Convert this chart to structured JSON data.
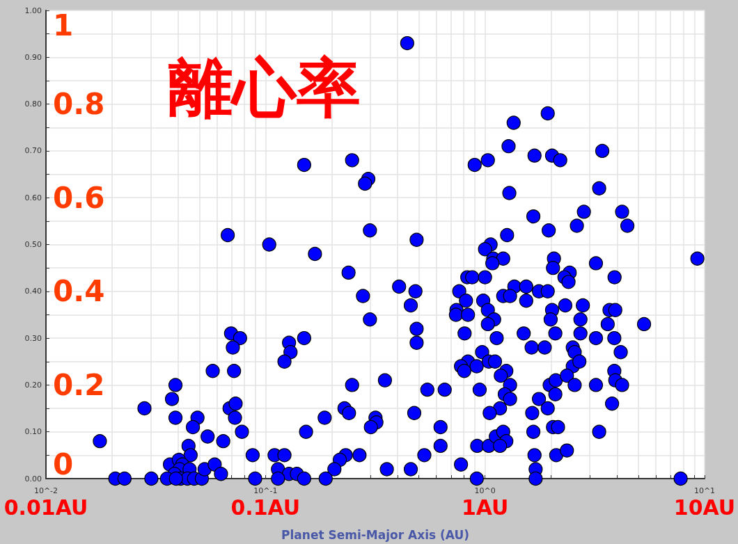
{
  "chart_data": {
    "type": "scatter",
    "annotations": [
      "離心率",
      "0.01AU",
      "0.1AU",
      "1AU",
      "10AU"
    ],
    "xlabel": "Planet Semi-Major Axis (AU)",
    "log": "x",
    "grid": true,
    "marker": "circle",
    "color": "#0000ff",
    "xlim": [
      0.01,
      10
    ],
    "xticks": [
      {
        "value": 0.01,
        "label": "10^-2"
      },
      {
        "value": 0.02,
        "label": null
      },
      {
        "value": 0.03,
        "label": null
      },
      {
        "value": 0.04,
        "label": null
      },
      {
        "value": 0.05,
        "label": null
      },
      {
        "value": 0.06,
        "label": null
      },
      {
        "value": 0.07,
        "label": null
      },
      {
        "value": 0.08,
        "label": null
      },
      {
        "value": 0.09,
        "label": null
      },
      {
        "value": 0.1,
        "label": "10^-1"
      },
      {
        "value": 0.2,
        "label": null
      },
      {
        "value": 0.3,
        "label": null
      },
      {
        "value": 0.4,
        "label": null
      },
      {
        "value": 0.5,
        "label": null
      },
      {
        "value": 0.6,
        "label": null
      },
      {
        "value": 0.7,
        "label": null
      },
      {
        "value": 0.8,
        "label": null
      },
      {
        "value": 0.9,
        "label": null
      },
      {
        "value": 1,
        "label": "10^0"
      },
      {
        "value": 2,
        "label": null
      },
      {
        "value": 3,
        "label": null
      },
      {
        "value": 4,
        "label": null
      },
      {
        "value": 5,
        "label": null
      },
      {
        "value": 6,
        "label": null
      },
      {
        "value": 7,
        "label": null
      },
      {
        "value": 8,
        "label": null
      },
      {
        "value": 9,
        "label": null
      },
      {
        "value": 10,
        "label": "10^1"
      }
    ],
    "ylim": [
      0,
      1
    ],
    "yticks": [
      {
        "value": 0,
        "label": "0.00"
      },
      {
        "value": 0.05,
        "label": null
      },
      {
        "value": 0.1,
        "label": "0.10"
      },
      {
        "value": 0.15,
        "label": null
      },
      {
        "value": 0.2,
        "label": "0.20"
      },
      {
        "value": 0.25,
        "label": null
      },
      {
        "value": 0.3,
        "label": "0.30"
      },
      {
        "value": 0.35,
        "label": null
      },
      {
        "value": 0.4,
        "label": "0.40"
      },
      {
        "value": 0.45,
        "label": null
      },
      {
        "value": 0.5,
        "label": "0.50"
      },
      {
        "value": 0.55,
        "label": null
      },
      {
        "value": 0.6,
        "label": "0.60"
      },
      {
        "value": 0.65,
        "label": null
      },
      {
        "value": 0.7,
        "label": "0.70"
      },
      {
        "value": 0.75,
        "label": null
      },
      {
        "value": 0.8,
        "label": "0.80"
      },
      {
        "value": 0.85,
        "label": null
      },
      {
        "value": 0.9,
        "label": "0.90"
      },
      {
        "value": 0.95,
        "label": null
      },
      {
        "value": 1,
        "label": "1.00"
      }
    ],
    "y2lim": [
      0,
      1
    ],
    "y2ticks": [
      0,
      0.2,
      0.4,
      0.6,
      0.8,
      1
    ],
    "x": [
      0.0176,
      0.0207,
      0.0228,
      0.0281,
      0.0302,
      0.0375,
      0.0389,
      0.0389,
      0.049,
      0.0467,
      0.0545,
      0.0642,
      0.0446,
      0.0456,
      0.0367,
      0.0403,
      0.0418,
      0.0406,
      0.0451,
      0.0385,
      0.0411,
      0.0356,
      0.0441,
      0.0473,
      0.0513,
      0.0528,
      0.0391,
      0.0587,
      0.0627,
      0.0575,
      0.0719,
      0.0697,
      0.0766,
      0.071,
      0.0686,
      0.0731,
      0.0726,
      0.0781,
      0.0673,
      0.0874,
      0.0897,
      0.104,
      0.11,
      0.122,
      0.114,
      0.128,
      0.139,
      0.114,
      0.15,
      0.153,
      0.15,
      0.128,
      0.13,
      0.122,
      0.168,
      0.15,
      0.248,
      0.294,
      0.284,
      0.442,
      0.299,
      0.488,
      0.239,
      0.278,
      0.299,
      0.406,
      0.482,
      0.459,
      0.488,
      0.488,
      0.248,
      0.35,
      0.546,
      0.655,
      0.229,
      0.24,
      0.186,
      0.317,
      0.32,
      0.302,
      0.476,
      0.627,
      0.627,
      0.529,
      0.777,
      0.459,
      0.357,
      0.232,
      0.218,
      0.206,
      0.268,
      0.188,
      0.917,
      1.93,
      1.35,
      1.28,
      1.68,
      2.02,
      2.2,
      3.42,
      0.897,
      1.03,
      1.29,
      3.31,
      1.66,
      2.82,
      4.21,
      2.62,
      4.45,
      1.26,
      1.95,
      9.27,
      1.06,
      1.0,
      1.09,
      1.21,
      1.08,
      2.06,
      2.04,
      3.2,
      2.43,
      2.3,
      2.4,
      3.89,
      0.83,
      0.874,
      1.0,
      0.763,
      0.819,
      0.741,
      0.737,
      0.836,
      0.981,
      1.03,
      1.1,
      1.03,
      1.36,
      1.54,
      1.21,
      1.3,
      1.54,
      1.76,
      1.93,
      2.02,
      1.99,
      2.32,
      2.79,
      2.72,
      2.72,
      3.69,
      3.92,
      3.62,
      5.3,
      0.807,
      1.13,
      1.5,
      2.09,
      3.2,
      3.88,
      1.63,
      1.87,
      2.51,
      2.56,
      4.15,
      0.97,
      0.836,
      0.777,
      0.804,
      0.916,
      1.04,
      1.11,
      2.51,
      2.69,
      3.88,
      3.92,
      4.21,
      1.25,
      1.18,
      1.3,
      1.23,
      1.3,
      1.17,
      1.05,
      0.945,
      1.97,
      2.1,
      2.09,
      2.36,
      2.56,
      3.2,
      1.76,
      1.93,
      1.64,
      3.79,
      2.04,
      2.15,
      3.31,
      1.66,
      0.921,
      1.04,
      1.12,
      1.21,
      1.25,
      1.17,
      1.68,
      1.7,
      1.7,
      2.11,
      2.36,
      7.78
    ],
    "values": [
      0.08,
      0,
      0,
      0.15,
      0,
      0.17,
      0.2,
      0.13,
      0.13,
      0.11,
      0.09,
      0.08,
      0.07,
      0.05,
      0.03,
      0.04,
      0.03,
      0.02,
      0.02,
      0.01,
      0,
      0,
      0,
      0,
      0,
      0.02,
      0,
      0.03,
      0.01,
      0.23,
      0.23,
      0.31,
      0.3,
      0.28,
      0.15,
      0.16,
      0.13,
      0.1,
      0.52,
      0.05,
      0,
      0.5,
      0.05,
      0.05,
      0.02,
      0.01,
      0.01,
      0,
      0,
      0.1,
      0.3,
      0.29,
      0.27,
      0.25,
      0.48,
      0.67,
      0.68,
      0.64,
      0.63,
      0.93,
      0.53,
      0.51,
      0.44,
      0.39,
      0.34,
      0.41,
      0.4,
      0.37,
      0.32,
      0.29,
      0.2,
      0.21,
      0.19,
      0.19,
      0.15,
      0.14,
      0.13,
      0.13,
      0.12,
      0.11,
      0.14,
      0.11,
      0.07,
      0.05,
      0.03,
      0.02,
      0.02,
      0.05,
      0.04,
      0.02,
      0.05,
      0,
      0,
      0.78,
      0.76,
      0.71,
      0.69,
      0.69,
      0.68,
      0.7,
      0.67,
      0.68,
      0.61,
      0.62,
      0.56,
      0.57,
      0.57,
      0.54,
      0.54,
      0.52,
      0.53,
      0.47,
      0.5,
      0.49,
      0.47,
      0.47,
      0.46,
      0.47,
      0.45,
      0.46,
      0.44,
      0.43,
      0.42,
      0.43,
      0.43,
      0.43,
      0.43,
      0.4,
      0.38,
      0.36,
      0.35,
      0.35,
      0.38,
      0.36,
      0.34,
      0.33,
      0.41,
      0.41,
      0.39,
      0.39,
      0.38,
      0.4,
      0.4,
      0.36,
      0.34,
      0.37,
      0.37,
      0.34,
      0.31,
      0.36,
      0.36,
      0.33,
      0.33,
      0.31,
      0.3,
      0.31,
      0.31,
      0.3,
      0.3,
      0.28,
      0.28,
      0.28,
      0.27,
      0.27,
      0.27,
      0.25,
      0.24,
      0.23,
      0.24,
      0.25,
      0.25,
      0.24,
      0.25,
      0.23,
      0.21,
      0.2,
      0.23,
      0.22,
      0.2,
      0.18,
      0.17,
      0.15,
      0.14,
      0.19,
      0.2,
      0.21,
      0.18,
      0.22,
      0.2,
      0.2,
      0.17,
      0.15,
      0.14,
      0.16,
      0.11,
      0.11,
      0.1,
      0.1,
      0.07,
      0.07,
      0.09,
      0.1,
      0.08,
      0.07,
      0.05,
      0.02,
      0,
      0.05,
      0.06,
      0
    ]
  }
}
